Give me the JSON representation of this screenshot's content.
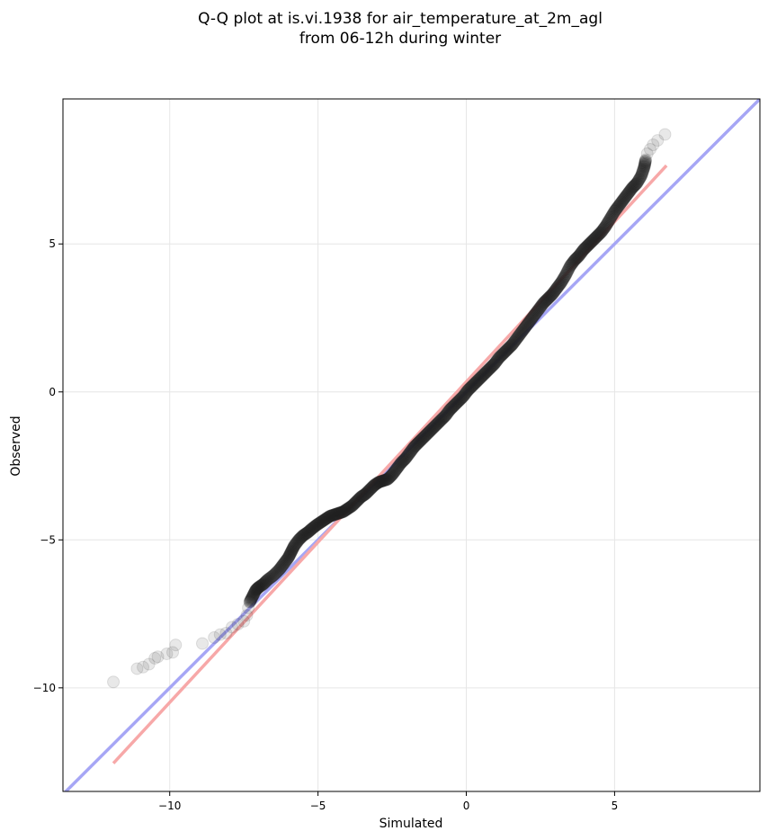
{
  "chart_data": {
    "type": "scatter",
    "title": "Q-Q plot at is.vi.1938 for air_temperature_at_2m_agl",
    "subtitle": "from 06-12h during winter",
    "xlabel": "Simulated",
    "ylabel": "Observed",
    "xlim": [
      -13.6,
      9.9
    ],
    "ylim": [
      -13.5,
      9.9
    ],
    "xticks": [
      -10,
      -5,
      0,
      5
    ],
    "yticks": [
      -10,
      -5,
      0,
      5
    ],
    "xtick_labels": [
      "−10",
      "−5",
      "0",
      "5"
    ],
    "ytick_labels": [
      "−10",
      "−5",
      "0",
      "5"
    ],
    "grid": true,
    "quantile_points": [
      [
        -11.9,
        -9.8
      ],
      [
        -11.1,
        -9.35
      ],
      [
        -10.9,
        -9.3
      ],
      [
        -10.7,
        -9.2
      ],
      [
        -10.5,
        -9.0
      ],
      [
        -10.4,
        -8.95
      ],
      [
        -10.1,
        -8.85
      ],
      [
        -9.9,
        -8.8
      ],
      [
        -9.8,
        -8.55
      ],
      [
        -8.9,
        -8.5
      ],
      [
        -8.5,
        -8.3
      ],
      [
        -8.3,
        -8.2
      ],
      [
        -8.1,
        -8.15
      ],
      [
        -7.9,
        -7.95
      ],
      [
        -7.7,
        -7.85
      ],
      [
        -7.5,
        -7.75
      ],
      [
        -7.4,
        -7.55
      ],
      [
        -7.35,
        -7.3
      ],
      [
        -7.3,
        -7.1
      ],
      [
        -7.2,
        -6.9
      ],
      [
        -7.1,
        -6.7
      ],
      [
        -7.0,
        -6.6
      ],
      [
        -6.85,
        -6.5
      ],
      [
        -6.7,
        -6.35
      ],
      [
        -6.5,
        -6.2
      ],
      [
        -6.3,
        -6.0
      ],
      [
        -6.15,
        -5.8
      ],
      [
        -6.0,
        -5.6
      ],
      [
        -5.9,
        -5.4
      ],
      [
        -5.8,
        -5.2
      ],
      [
        -5.65,
        -5.0
      ],
      [
        -5.5,
        -4.85
      ],
      [
        -5.35,
        -4.75
      ],
      [
        -5.2,
        -4.62
      ],
      [
        -5.05,
        -4.5
      ],
      [
        -4.9,
        -4.4
      ],
      [
        -4.75,
        -4.3
      ],
      [
        -4.6,
        -4.2
      ],
      [
        -4.45,
        -4.15
      ],
      [
        -4.3,
        -4.1
      ],
      [
        -4.15,
        -4.05
      ],
      [
        -4.0,
        -3.95
      ],
      [
        -3.85,
        -3.85
      ],
      [
        -3.7,
        -3.7
      ],
      [
        -3.55,
        -3.55
      ],
      [
        -3.4,
        -3.45
      ],
      [
        -3.25,
        -3.3
      ],
      [
        -3.1,
        -3.15
      ],
      [
        -2.95,
        -3.05
      ],
      [
        -2.8,
        -3.0
      ],
      [
        -2.65,
        -2.95
      ],
      [
        -2.5,
        -2.8
      ],
      [
        -2.35,
        -2.6
      ],
      [
        -2.2,
        -2.4
      ],
      [
        -2.05,
        -2.25
      ],
      [
        -1.9,
        -2.05
      ],
      [
        -1.75,
        -1.85
      ],
      [
        -1.6,
        -1.7
      ],
      [
        -1.45,
        -1.55
      ],
      [
        -1.3,
        -1.4
      ],
      [
        -1.15,
        -1.25
      ],
      [
        -1.0,
        -1.1
      ],
      [
        -0.85,
        -0.95
      ],
      [
        -0.7,
        -0.8
      ],
      [
        -0.55,
        -0.6
      ],
      [
        -0.4,
        -0.45
      ],
      [
        -0.25,
        -0.3
      ],
      [
        -0.1,
        -0.15
      ],
      [
        0.05,
        0.05
      ],
      [
        0.2,
        0.2
      ],
      [
        0.35,
        0.35
      ],
      [
        0.5,
        0.5
      ],
      [
        0.65,
        0.65
      ],
      [
        0.8,
        0.8
      ],
      [
        0.95,
        0.95
      ],
      [
        1.1,
        1.15
      ],
      [
        1.25,
        1.3
      ],
      [
        1.4,
        1.45
      ],
      [
        1.55,
        1.6
      ],
      [
        1.7,
        1.8
      ],
      [
        1.85,
        2.0
      ],
      [
        2.0,
        2.2
      ],
      [
        2.15,
        2.4
      ],
      [
        2.3,
        2.6
      ],
      [
        2.45,
        2.8
      ],
      [
        2.6,
        3.0
      ],
      [
        2.75,
        3.15
      ],
      [
        2.9,
        3.3
      ],
      [
        3.05,
        3.5
      ],
      [
        3.2,
        3.7
      ],
      [
        3.35,
        3.95
      ],
      [
        3.5,
        4.25
      ],
      [
        3.65,
        4.45
      ],
      [
        3.8,
        4.6
      ],
      [
        3.95,
        4.8
      ],
      [
        4.1,
        4.95
      ],
      [
        4.25,
        5.1
      ],
      [
        4.4,
        5.25
      ],
      [
        4.55,
        5.4
      ],
      [
        4.7,
        5.6
      ],
      [
        4.85,
        5.85
      ],
      [
        5.0,
        6.1
      ],
      [
        5.15,
        6.3
      ],
      [
        5.3,
        6.5
      ],
      [
        5.45,
        6.7
      ],
      [
        5.6,
        6.9
      ],
      [
        5.75,
        7.05
      ],
      [
        5.9,
        7.3
      ],
      [
        6.0,
        7.6
      ],
      [
        6.05,
        7.85
      ],
      [
        6.1,
        8.05
      ],
      [
        6.2,
        8.2
      ],
      [
        6.3,
        8.35
      ],
      [
        6.45,
        8.5
      ],
      [
        6.7,
        8.7
      ]
    ],
    "reference_lines": [
      {
        "color": "#a6a6f5",
        "x": [
          -13.6,
          9.9
        ],
        "y": [
          -13.6,
          9.9
        ]
      },
      {
        "color": "#f7a8a8",
        "x": [
          -11.9,
          6.75
        ],
        "y": [
          -12.55,
          7.65
        ]
      }
    ],
    "colors": {
      "points": "#202020",
      "grid": "#e6e6e6",
      "axes": "#000000"
    }
  }
}
